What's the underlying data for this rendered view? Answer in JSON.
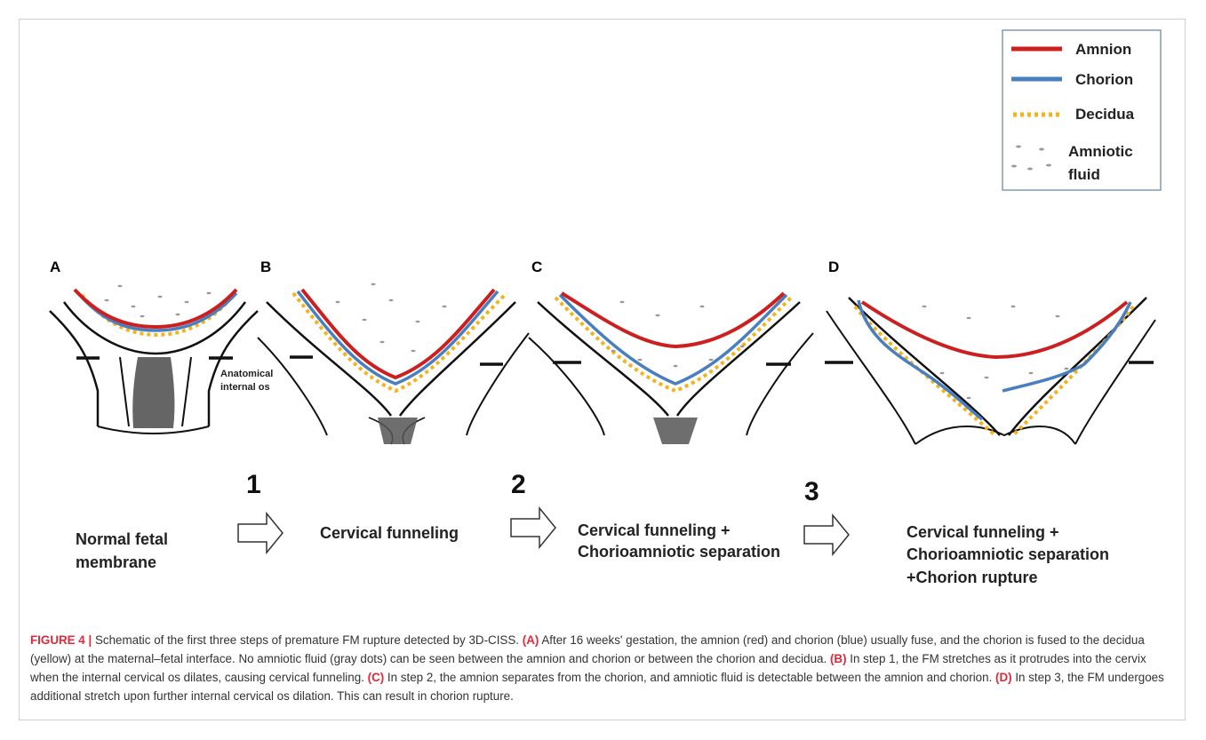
{
  "legend": {
    "items": [
      {
        "label": "Amnion",
        "color": "#cc1f1f",
        "style": "solid"
      },
      {
        "label": "Chorion",
        "color": "#4a7fbf",
        "style": "solid"
      },
      {
        "label": "Decidua",
        "color": "#f5b21b",
        "style": "dotted"
      }
    ],
    "fluid_label_line1": "Amniotic",
    "fluid_label_line2": "fluid"
  },
  "panels": {
    "a": "A",
    "b": "B",
    "c": "C",
    "d": "D"
  },
  "internal_os_label_line1": "Anatomical",
  "internal_os_label_line2": "internal os",
  "steps": [
    {
      "number": "1"
    },
    {
      "number": "2"
    },
    {
      "number": "3"
    }
  ],
  "stages": {
    "a": [
      "Normal fetal",
      "membrane"
    ],
    "b": [
      "Cervical funneling"
    ],
    "c": [
      "Cervical funneling +",
      "Chorioamniotic separation"
    ],
    "d": [
      "Cervical funneling +",
      "Chorioamniotic separation",
      "+Chorion rupture"
    ]
  },
  "caption": {
    "figure_label": "FIGURE 4 |",
    "intro": " Schematic of the first three steps of premature FM rupture detected by 3D-CISS. ",
    "a_tag": "(A)",
    "a_text": " After 16 weeks' gestation, the amnion (red) and chorion (blue) usually fuse, and the chorion is fused to the decidua (yellow) at the maternal–fetal interface. No amniotic fluid (gray dots) can be seen between the amnion and chorion or between the chorion and decidua. ",
    "b_tag": "(B)",
    "b_text": " In step 1, the FM stretches as it protrudes into the cervix when the internal cervical os dilates, causing cervical funneling. ",
    "c_tag": "(C)",
    "c_text": " In step 2, the amnion separates from the chorion, and amniotic fluid is detectable between the amnion and chorion. ",
    "d_tag": "(D)",
    "d_text": " In step 3, the FM undergoes additional stretch upon further internal cervical os dilation. This can result in chorion rupture."
  },
  "colors": {
    "amnion": "#cc1f1f",
    "chorion": "#4a7fbf",
    "decidua": "#f5b21b",
    "fluid": "#9a9a9a",
    "caption_accent": "#e02a3b"
  }
}
